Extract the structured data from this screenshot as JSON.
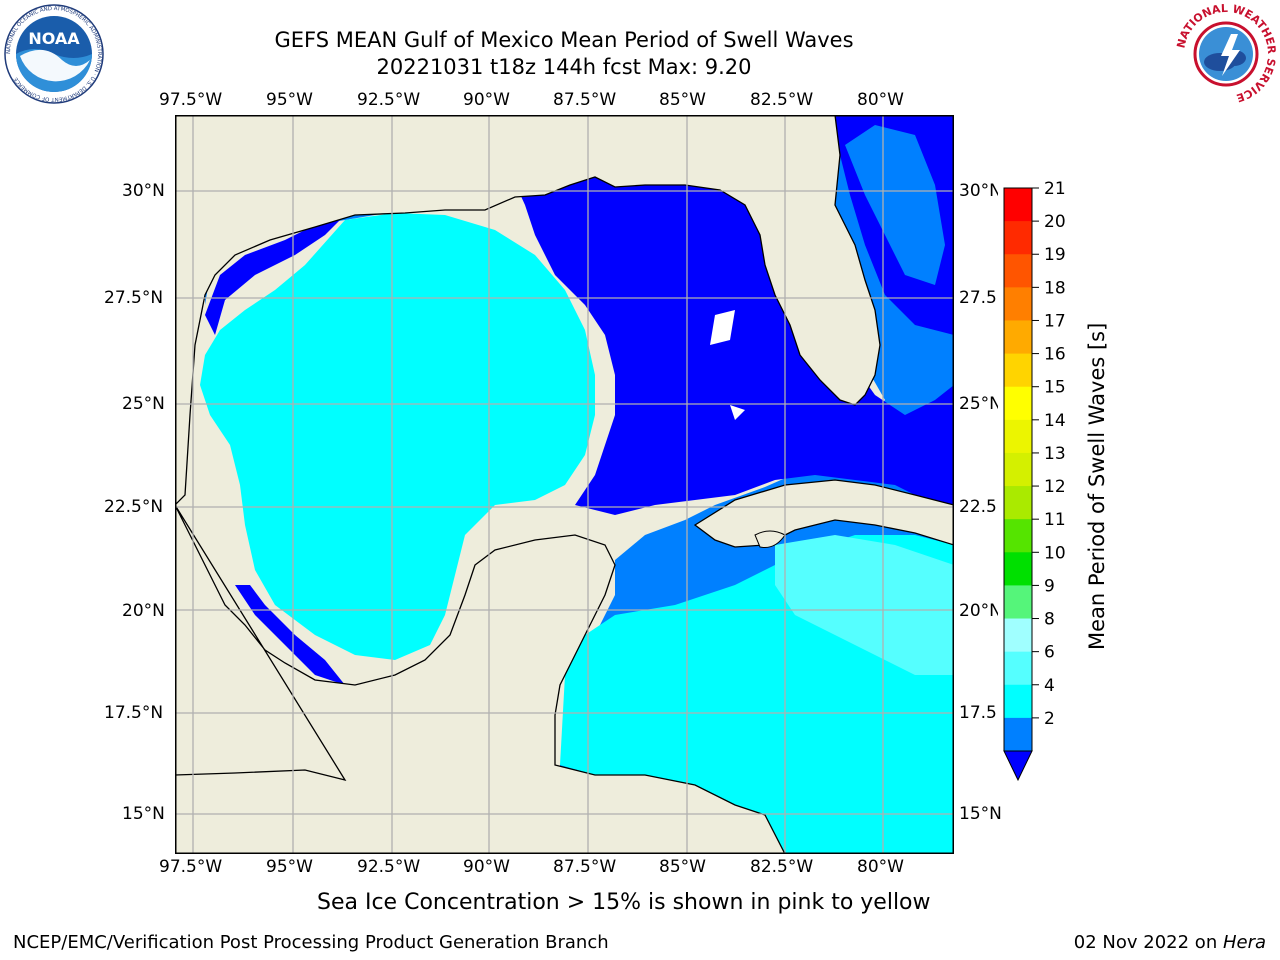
{
  "header": {
    "title_line1": "GEFS MEAN Gulf of Mexico Mean Period of Swell Waves",
    "title_line2": "20221031 t18z 144h fcst   Max: 9.20"
  },
  "logos": {
    "left": {
      "name": "NOAA",
      "ring_text": "NATIONAL OCEANIC AND ATMOSPHERIC ADMINISTRATION · U.S. DEPARTMENT OF COMMERCE"
    },
    "right": {
      "ring_text": "NATIONAL WEATHER SERVICE"
    }
  },
  "map": {
    "lon_labels": [
      "97.5°W",
      "95°W",
      "92.5°W",
      "90°W",
      "87.5°W",
      "85°W",
      "82.5°W",
      "80°W"
    ],
    "lat_labels_left": [
      "30°N",
      "27.5°N",
      "25°N",
      "22.5°N",
      "20°N",
      "17.5°N",
      "15°N"
    ],
    "lat_labels_right": [
      "30°N",
      "27.5",
      "25°N",
      "22.5",
      "20°N",
      "17.5",
      "15°N"
    ],
    "colors": {
      "land": "#eeeddc",
      "grid": "#b0b0b0",
      "coast": "#000000"
    }
  },
  "colorbar": {
    "title": "Mean Period of Swell Waves [s]",
    "ticks": [
      "21",
      "20",
      "19",
      "18",
      "17",
      "16",
      "15",
      "14",
      "13",
      "12",
      "11",
      "10",
      "9",
      "8",
      "6",
      "4",
      "2"
    ],
    "colors": [
      "#ff0000",
      "#ff2a00",
      "#ff5500",
      "#ff7f00",
      "#ffaa00",
      "#ffd400",
      "#ffff00",
      "#ecf500",
      "#d4f000",
      "#aaea00",
      "#55e400",
      "#00e000",
      "#55f57a",
      "#a0ffff",
      "#55ffff",
      "#00ffff",
      "#0080ff"
    ],
    "extend_color": "#0000ff"
  },
  "caption": "Sea Ice Concentration > 15% is shown in pink to yellow",
  "footer": {
    "left": "NCEP/EMC/Verification Post Processing Product Generation Branch",
    "date": "02 Nov 2022 on ",
    "host": "Hera"
  }
}
